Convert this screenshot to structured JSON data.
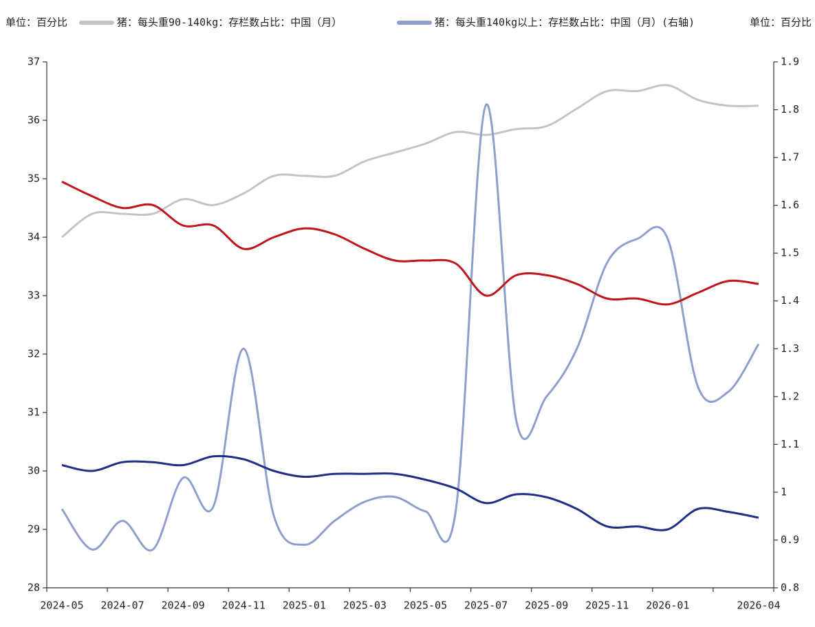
{
  "chart_data": {
    "type": "line",
    "unit_left": "单位：百分比",
    "unit_right": "单位：百分比",
    "categories": [
      "2024-05",
      null,
      "2024-07",
      null,
      "2024-09",
      null,
      "2024-11",
      null,
      "2025-01",
      null,
      "2025-03",
      null,
      "2025-05",
      null,
      "2025-07",
      null,
      "2025-09",
      null,
      "2025-11",
      null,
      "2026-01",
      null,
      null,
      "2026-04"
    ],
    "ylim": [
      28,
      37
    ],
    "yticks": [
      28,
      29,
      30,
      31,
      32,
      33,
      34,
      35,
      36,
      37
    ],
    "y2lim": [
      0.8,
      1.9
    ],
    "y2ticks": [
      0.8,
      0.9,
      1,
      1.1,
      1.2,
      1.3,
      1.4,
      1.5,
      1.6,
      1.7,
      1.8,
      1.9
    ],
    "series": [
      {
        "name": "猪：每头重90-140kg：存栏数占比：中国（月）",
        "color": "#c4c4c4",
        "values": [
          34.0,
          34.4,
          34.4,
          34.4,
          34.65,
          34.55,
          34.75,
          35.05,
          35.05,
          35.05,
          35.3,
          35.45,
          35.6,
          35.8,
          35.75,
          35.85,
          35.9,
          36.2,
          36.5,
          36.5,
          36.6,
          36.35,
          36.25,
          36.25
        ]
      },
      {
        "name": "猪：每头重140kg以上：存栏数占比：中国（月）(右轴)",
        "color": "#8e9fcc",
        "axis": "y2",
        "values": [
          0.965,
          0.88,
          0.94,
          0.88,
          1.03,
          0.97,
          1.3,
          0.95,
          0.89,
          0.94,
          0.98,
          0.99,
          0.96,
          0.96,
          1.81,
          1.15,
          1.2,
          1.3,
          1.48,
          1.53,
          1.53,
          1.22,
          1.21,
          1.31
        ]
      },
      {
        "color": "#c0141c",
        "values": [
          34.95,
          34.7,
          34.5,
          34.55,
          34.2,
          34.2,
          33.8,
          34.0,
          34.15,
          34.05,
          33.8,
          33.6,
          33.6,
          33.55,
          33.0,
          33.35,
          33.35,
          33.2,
          32.95,
          32.95,
          32.85,
          33.05,
          33.25,
          33.2
        ]
      },
      {
        "color": "#1f2e86",
        "values": [
          30.1,
          30.0,
          30.15,
          30.15,
          30.1,
          30.25,
          30.2,
          30.0,
          29.9,
          29.95,
          29.95,
          29.95,
          29.85,
          29.7,
          29.45,
          29.6,
          29.55,
          29.35,
          29.05,
          29.05,
          29.0,
          29.35,
          29.3,
          29.2
        ]
      }
    ]
  }
}
